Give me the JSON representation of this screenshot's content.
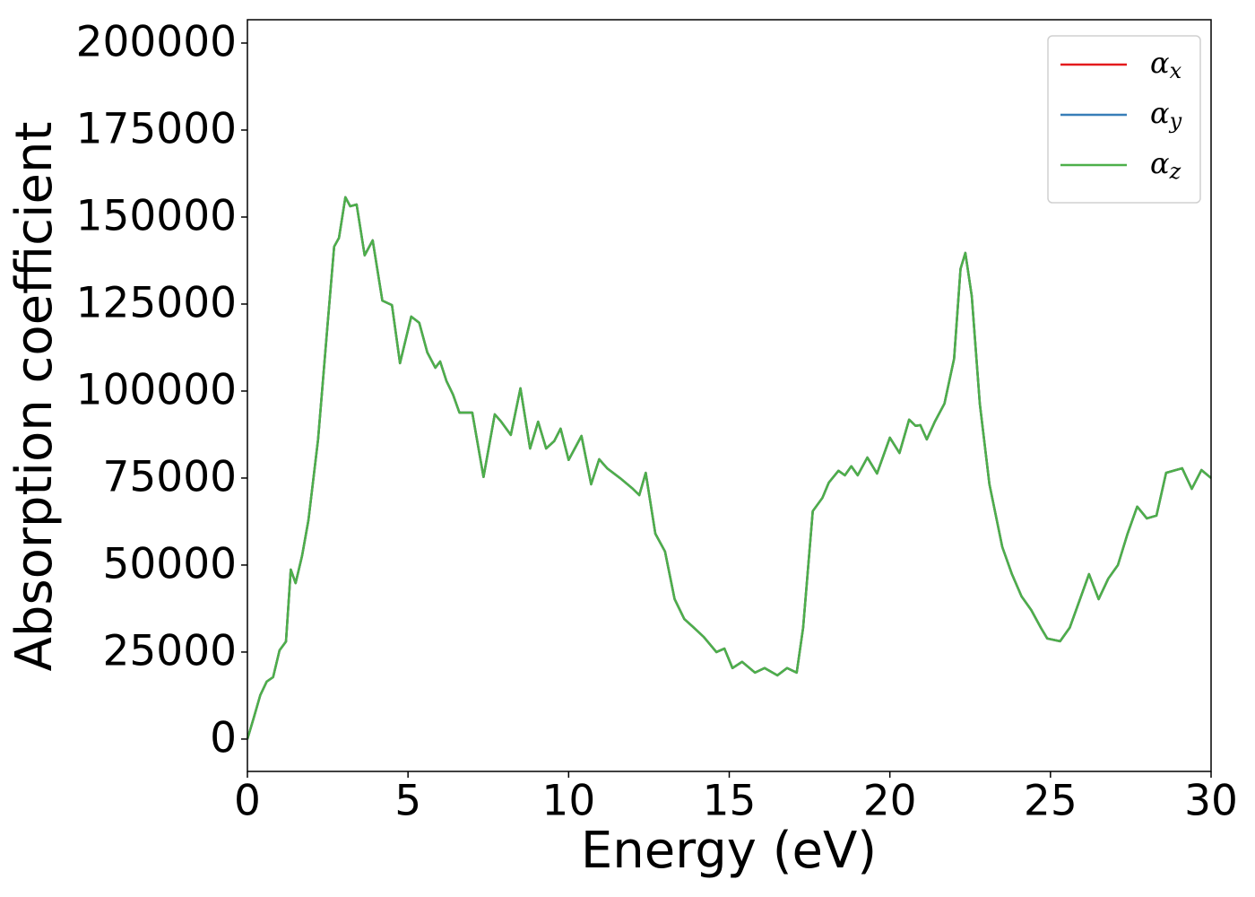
{
  "chart_data": {
    "type": "line",
    "xlabel": "Energy (eV)",
    "ylabel": "Absorption coefficient",
    "x": [
      0,
      0.2,
      0.4,
      0.6,
      0.8,
      1.0,
      1.2,
      1.35,
      1.5,
      1.7,
      1.9,
      2.2,
      2.5,
      2.7,
      2.85,
      3.05,
      3.2,
      3.4,
      3.65,
      3.9,
      4.2,
      4.5,
      4.75,
      5.1,
      5.35,
      5.6,
      5.85,
      6.0,
      6.2,
      6.4,
      6.6,
      7.0,
      7.35,
      7.7,
      7.9,
      8.2,
      8.5,
      8.8,
      9.05,
      9.3,
      9.55,
      9.75,
      10.0,
      10.4,
      10.7,
      10.95,
      11.2,
      11.6,
      12.0,
      12.2,
      12.4,
      12.7,
      13.0,
      13.3,
      13.6,
      13.9,
      14.2,
      14.6,
      14.85,
      15.1,
      15.4,
      15.8,
      16.1,
      16.5,
      16.8,
      17.1,
      17.3,
      17.6,
      17.9,
      18.1,
      18.4,
      18.6,
      18.8,
      19.0,
      19.3,
      19.6,
      20.0,
      20.3,
      20.6,
      20.8,
      20.95,
      21.15,
      21.4,
      21.7,
      22.0,
      22.2,
      22.35,
      22.55,
      22.8,
      23.1,
      23.5,
      23.8,
      24.1,
      24.4,
      24.7,
      24.9,
      25.3,
      25.6,
      25.9,
      26.2,
      26.5,
      26.8,
      27.1,
      27.4,
      27.7,
      28.0,
      28.3,
      28.6,
      28.9,
      29.1,
      29.4,
      29.7,
      30.0
    ],
    "series": [
      {
        "name": "αx",
        "color": "#e41a1c",
        "values": [
          0,
          6200,
          12600,
          16500,
          17800,
          25500,
          28000,
          48700,
          44800,
          52600,
          62900,
          86100,
          119600,
          141500,
          144000,
          155700,
          153100,
          153600,
          139000,
          143300,
          126000,
          124700,
          108000,
          121400,
          119600,
          111100,
          106700,
          108500,
          102800,
          99000,
          93800,
          93800,
          75300,
          93300,
          91200,
          87400,
          100800,
          83500,
          91200,
          83500,
          85600,
          89200,
          80200,
          87100,
          73200,
          80400,
          77800,
          75000,
          71900,
          70100,
          76500,
          59000,
          53900,
          40200,
          34500,
          32000,
          29400,
          25000,
          26000,
          20400,
          22200,
          19100,
          20400,
          18300,
          20400,
          19100,
          32000,
          65500,
          69300,
          73700,
          77100,
          75800,
          78400,
          75800,
          80900,
          76300,
          86600,
          82200,
          91800,
          90000,
          90200,
          86100,
          91200,
          96400,
          109300,
          135100,
          139700,
          127300,
          96400,
          73200,
          55200,
          47400,
          41000,
          37100,
          32000,
          28900,
          28100,
          32000,
          39700,
          47400,
          40200,
          46100,
          50000,
          59000,
          66800,
          63400,
          64200,
          76500,
          77300,
          77800,
          71900,
          77300,
          75000
        ]
      },
      {
        "name": "αy",
        "color": "#377eb8",
        "values": [
          0,
          6200,
          12600,
          16500,
          17800,
          25500,
          28000,
          48700,
          44800,
          52600,
          62900,
          86100,
          119600,
          141500,
          144000,
          155700,
          153100,
          153600,
          139000,
          143300,
          126000,
          124700,
          108000,
          121400,
          119600,
          111100,
          106700,
          108500,
          102800,
          99000,
          93800,
          93800,
          75300,
          93300,
          91200,
          87400,
          100800,
          83500,
          91200,
          83500,
          85600,
          89200,
          80200,
          87100,
          73200,
          80400,
          77800,
          75000,
          71900,
          70100,
          76500,
          59000,
          53900,
          40200,
          34500,
          32000,
          29400,
          25000,
          26000,
          20400,
          22200,
          19100,
          20400,
          18300,
          20400,
          19100,
          32000,
          65500,
          69300,
          73700,
          77100,
          75800,
          78400,
          75800,
          80900,
          76300,
          86600,
          82200,
          91800,
          90000,
          90200,
          86100,
          91200,
          96400,
          109300,
          135100,
          139700,
          127300,
          96400,
          73200,
          55200,
          47400,
          41000,
          37100,
          32000,
          28900,
          28100,
          32000,
          39700,
          47400,
          40200,
          46100,
          50000,
          59000,
          66800,
          63400,
          64200,
          76500,
          77300,
          77800,
          71900,
          77300,
          75000
        ]
      },
      {
        "name": "αz",
        "color": "#4daf4a",
        "values": [
          0,
          6200,
          12600,
          16500,
          17800,
          25500,
          28000,
          48700,
          44800,
          52600,
          62900,
          86100,
          119600,
          141500,
          144000,
          155700,
          153100,
          153600,
          139000,
          143300,
          126000,
          124700,
          108000,
          121400,
          119600,
          111100,
          106700,
          108500,
          102800,
          99000,
          93800,
          93800,
          75300,
          93300,
          91200,
          87400,
          100800,
          83500,
          91200,
          83500,
          85600,
          89200,
          80200,
          87100,
          73200,
          80400,
          77800,
          75000,
          71900,
          70100,
          76500,
          59000,
          53900,
          40200,
          34500,
          32000,
          29400,
          25000,
          26000,
          20400,
          22200,
          19100,
          20400,
          18300,
          20400,
          19100,
          32000,
          65500,
          69300,
          73700,
          77100,
          75800,
          78400,
          75800,
          80900,
          76300,
          86600,
          82200,
          91800,
          90000,
          90200,
          86100,
          91200,
          96400,
          109300,
          135100,
          139700,
          127300,
          96400,
          73200,
          55200,
          47400,
          41000,
          37100,
          32000,
          28900,
          28100,
          32000,
          39700,
          47400,
          40200,
          46100,
          50000,
          59000,
          66800,
          63400,
          64200,
          76500,
          77300,
          77800,
          71900,
          77300,
          75000
        ]
      }
    ],
    "xlim": [
      0,
      30
    ],
    "xticks": [
      0,
      5,
      10,
      15,
      20,
      25,
      30
    ],
    "ylim": [
      -9300,
      206700
    ],
    "yticks": [
      0,
      25000,
      50000,
      75000,
      100000,
      125000,
      150000,
      175000,
      200000
    ],
    "grid": false,
    "legend": "upper right"
  }
}
